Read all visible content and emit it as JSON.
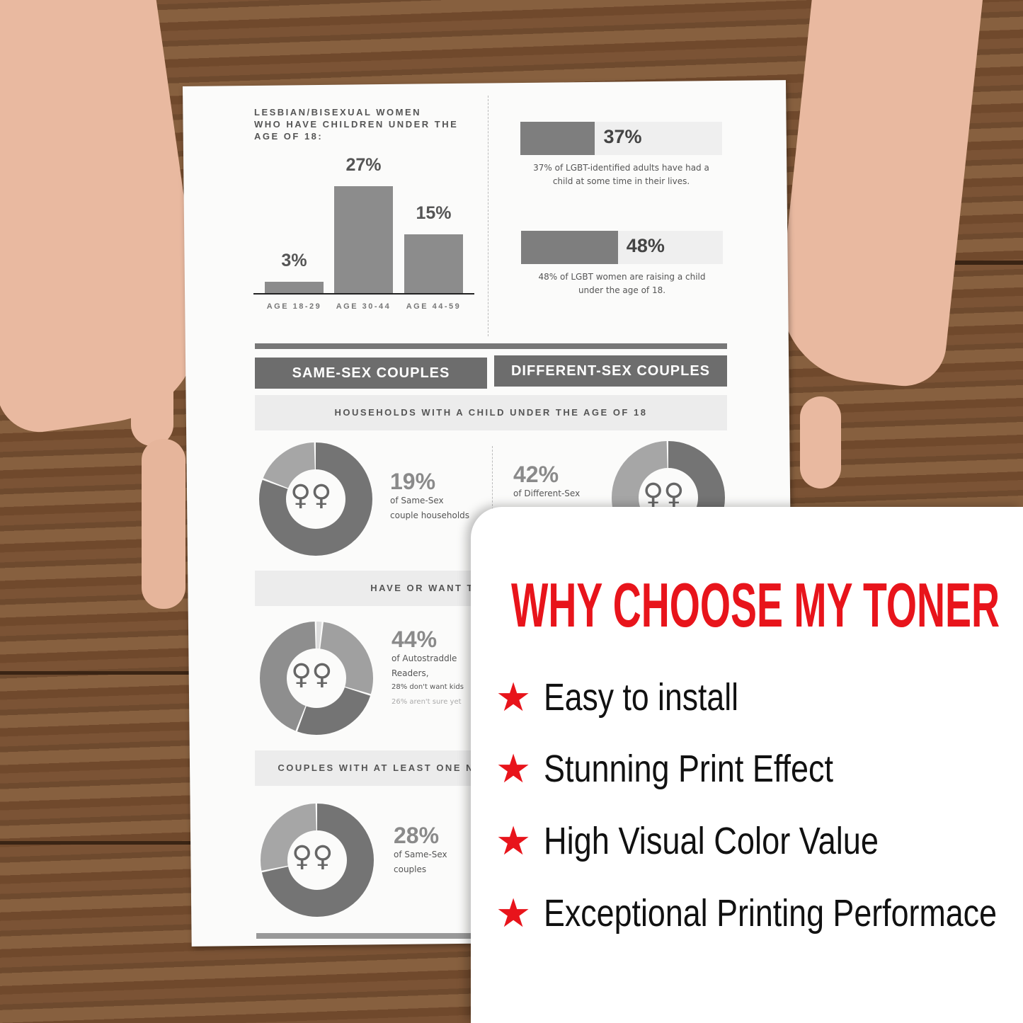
{
  "document": {
    "chart": {
      "title_lines": [
        "LESBIAN/BISEXUAL WOMEN",
        "WHO HAVE CHILDREN UNDER THE",
        "AGE OF 18:"
      ],
      "categories": [
        "AGE 18-29",
        "AGE 30-44",
        "AGE 44-59"
      ],
      "values": [
        3,
        27,
        15
      ],
      "labels": [
        "3%",
        "27%",
        "15%"
      ]
    },
    "stat_bars": [
      {
        "value": 37,
        "label": "37%",
        "caption_lines": [
          "37% of LGBT-identified adults have had a",
          "child at some time in their lives."
        ]
      },
      {
        "value": 48,
        "label": "48%",
        "caption_lines": [
          "48% of LGBT women are raising a child",
          "under the age of 18."
        ]
      }
    ],
    "headers": {
      "same_sex": "SAME-SEX COUPLES",
      "different_sex": "DIFFERENT-SEX COUPLES"
    },
    "bands": [
      "HOUSEHOLDS WITH A CHILD UNDER THE AGE OF 18",
      "HAVE OR WANT T",
      "COUPLES WITH AT LEAST ONE N"
    ],
    "donuts": [
      {
        "pct": "19%",
        "lines": [
          "of Same-Sex",
          "couple households"
        ],
        "segments": [
          19,
          81
        ]
      },
      {
        "pct": "42%",
        "lines": [
          "of Different-Sex"
        ],
        "segments": [
          42,
          58
        ]
      },
      {
        "pct": "44%",
        "lines": [
          "of Autostraddle",
          "Readers,",
          "28% don't want kids",
          "26% aren't sure yet"
        ],
        "segments": [
          2,
          28,
          26,
          44
        ]
      },
      {
        "pct": "28%",
        "lines": [
          "of Same-Sex",
          "couples"
        ],
        "segments": [
          28,
          72
        ]
      }
    ],
    "symbol": "♀♀"
  },
  "card": {
    "title": "WHY CHOOSE MY TONER",
    "features": [
      "Easy to install",
      "Stunning Print Effect",
      "High Visual Color Value",
      "Exceptional Printing Performace"
    ],
    "star_icon": "★",
    "accent": "#e8141b"
  }
}
